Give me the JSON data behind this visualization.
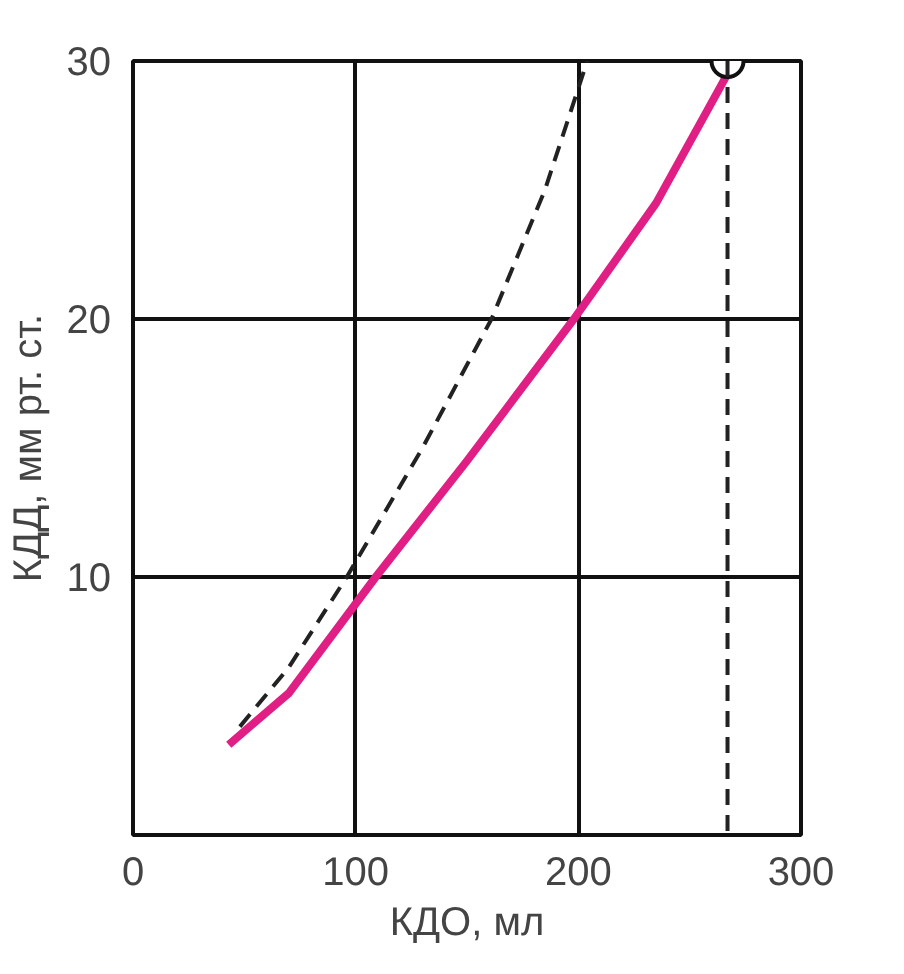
{
  "chart_data": {
    "type": "line",
    "xlabel": "КДО, мл",
    "ylabel": "КДД, мм рт. ст.",
    "xlim": [
      0,
      300
    ],
    "ylim": [
      0,
      30
    ],
    "xticks": [
      0,
      100,
      200,
      300
    ],
    "yticks": [
      10,
      20,
      30
    ],
    "grid": true,
    "series": [
      {
        "color": "#e01e84",
        "line_style": "solid",
        "x": [
          43,
          70,
          109,
          150,
          198,
          235,
          267
        ],
        "values": [
          3.5,
          5.5,
          10,
          14.5,
          20,
          24.5,
          29.5
        ]
      },
      {
        "color": "#222222",
        "line_style": "dashed",
        "x": [
          48,
          70,
          96,
          130,
          161,
          185,
          204
        ],
        "values": [
          4.2,
          6.5,
          10,
          15,
          20,
          25,
          30
        ]
      },
      {
        "type": "scatter",
        "marker": "circle",
        "color": "#ffffff",
        "x": [
          267
        ],
        "values": [
          30
        ]
      }
    ],
    "ref_lines": [
      {
        "axis": "x",
        "value": 267,
        "line_style": "dashed",
        "color": "#222222"
      }
    ]
  }
}
